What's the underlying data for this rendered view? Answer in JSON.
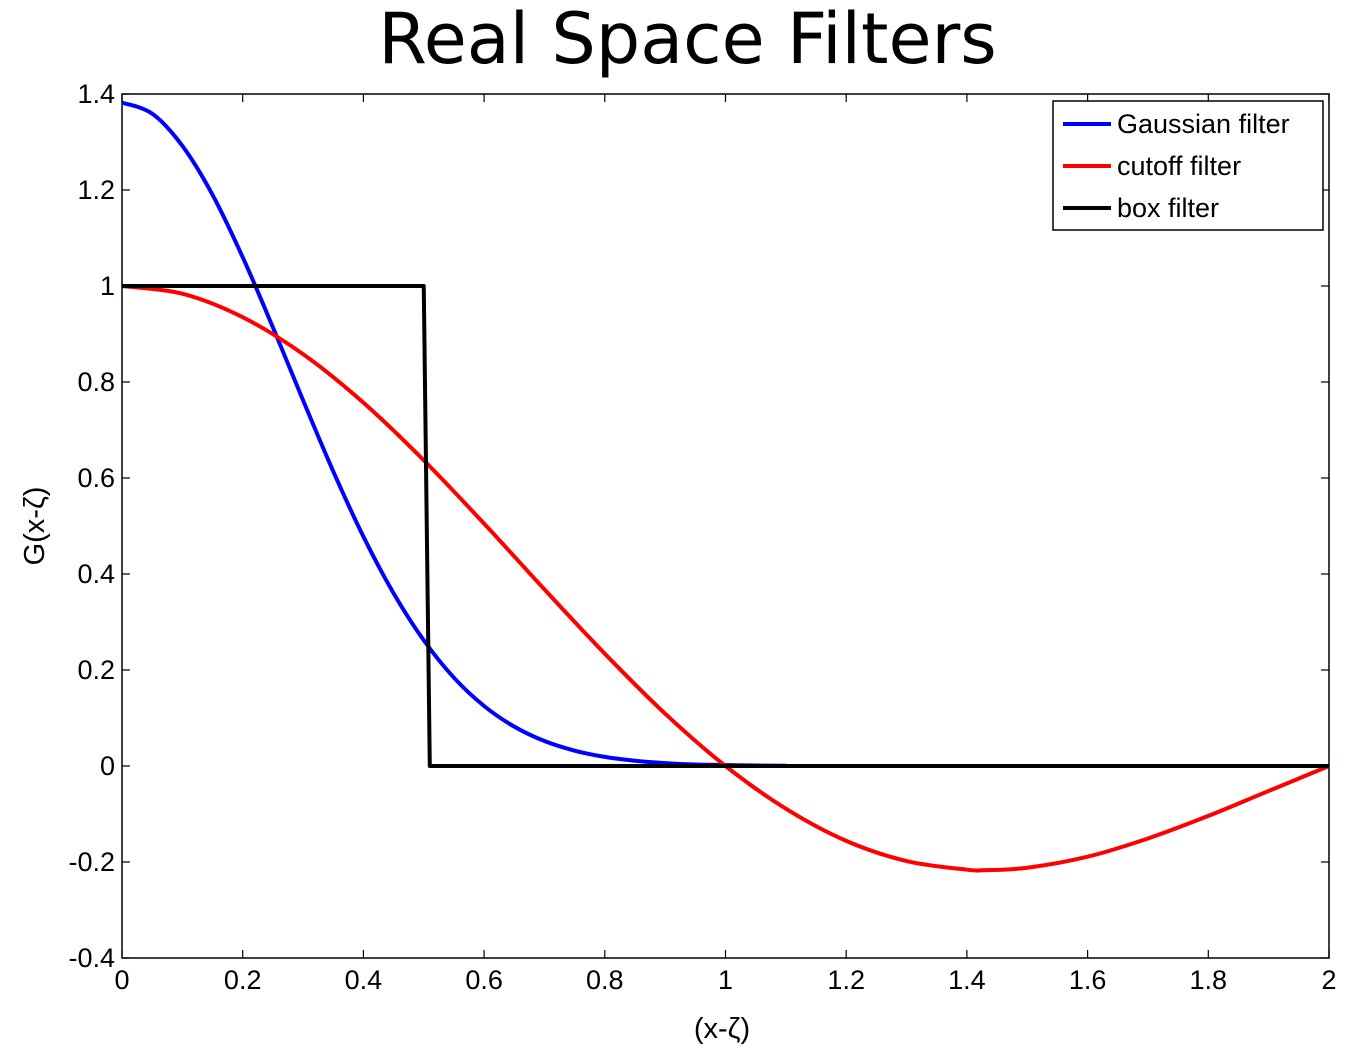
{
  "chart_data": {
    "type": "line",
    "title": "Real Space Filters",
    "xlabel": "(x-ζ)",
    "ylabel": "G(x-ζ)",
    "xlim": [
      0,
      2
    ],
    "ylim": [
      -0.4,
      1.4
    ],
    "xticks": [
      0,
      0.2,
      0.4,
      0.6,
      0.8,
      1,
      1.2,
      1.4,
      1.6,
      1.8,
      2
    ],
    "xtick_labels": [
      "0",
      "0.2",
      "0.4",
      "0.6",
      "0.8",
      "1",
      "1.2",
      "1.4",
      "1.6",
      "1.8",
      "2"
    ],
    "yticks": [
      -0.4,
      -0.2,
      0,
      0.2,
      0.4,
      0.6,
      0.8,
      1,
      1.2,
      1.4
    ],
    "ytick_labels": [
      "-0.4",
      "-0.2",
      "0",
      "0.2",
      "0.4",
      "0.6",
      "0.8",
      "1",
      "1.2",
      "1.4"
    ],
    "grid": false,
    "legend_position": "top-right",
    "series": [
      {
        "name": "Gaussian filter",
        "color": "#0000ff",
        "x": [
          0,
          0.05,
          0.1,
          0.15,
          0.2,
          0.25,
          0.3,
          0.35,
          0.4,
          0.45,
          0.5,
          0.55,
          0.6,
          0.65,
          0.7,
          0.75,
          0.8,
          0.85,
          0.9,
          0.95,
          1.0,
          1.05,
          1.1
        ],
        "y": [
          1.382,
          1.359,
          1.292,
          1.19,
          1.06,
          0.914,
          0.762,
          0.614,
          0.478,
          0.36,
          0.262,
          0.184,
          0.125,
          0.082,
          0.052,
          0.032,
          0.019,
          0.011,
          0.006,
          0.003,
          0.002,
          0.001,
          0.0005
        ]
      },
      {
        "name": "cutoff filter",
        "color": "#ff0000",
        "x": [
          0,
          0.1,
          0.2,
          0.3,
          0.4,
          0.5,
          0.6,
          0.7,
          0.8,
          0.9,
          1.0,
          1.1,
          1.2,
          1.3,
          1.4,
          1.43,
          1.5,
          1.6,
          1.7,
          1.8,
          1.9,
          2.0
        ],
        "y": [
          1.0,
          0.984,
          0.935,
          0.858,
          0.757,
          0.637,
          0.505,
          0.368,
          0.234,
          0.109,
          0.0,
          -0.089,
          -0.156,
          -0.198,
          -0.216,
          -0.217,
          -0.212,
          -0.189,
          -0.151,
          -0.104,
          -0.052,
          0.0
        ]
      },
      {
        "name": "box filter",
        "color": "#000000",
        "x": [
          0,
          0.5,
          0.51,
          2.0
        ],
        "y": [
          1.0,
          1.0,
          0.0,
          0.0
        ]
      }
    ]
  }
}
